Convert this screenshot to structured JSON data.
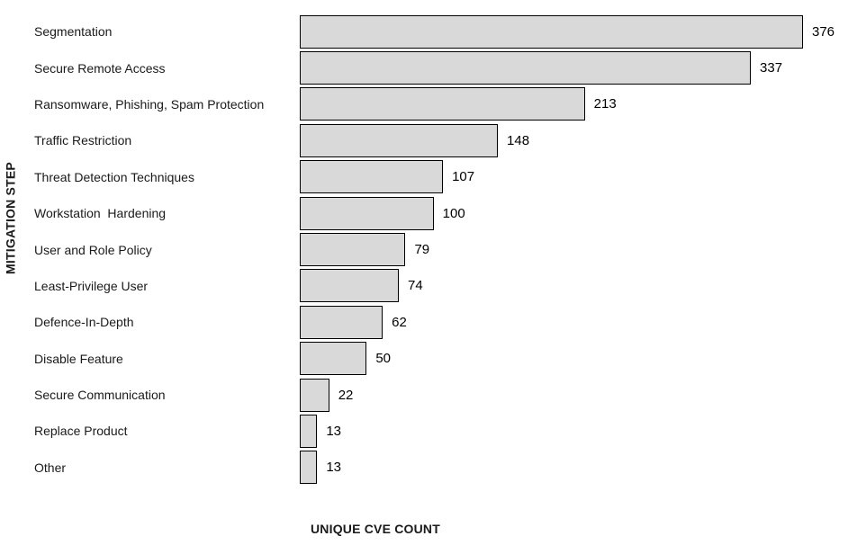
{
  "chart_data": {
    "type": "bar",
    "orientation": "horizontal",
    "title": "",
    "xlabel": "UNIQUE CVE COUNT",
    "ylabel": "MITIGATION STEP",
    "categories": [
      "Segmentation",
      "Secure Remote Access",
      "Ransomware, Phishing, Spam Protection",
      "Traffic Restriction",
      "Threat Detection Techniques",
      "Workstation  Hardening",
      "User and Role Policy",
      "Least-Privilege User",
      "Defence-In-Depth",
      "Disable Feature",
      "Secure Communication",
      "Replace Product",
      "Other"
    ],
    "values": [
      376,
      337,
      213,
      148,
      107,
      100,
      79,
      74,
      62,
      50,
      22,
      13,
      13
    ],
    "data_labels": true,
    "xlim": [
      0,
      400
    ],
    "grid": false,
    "legend": false,
    "bar_fill_color": "#d9d9d9",
    "bar_border_color": "#000000",
    "text_color": "#1a1a1a"
  }
}
